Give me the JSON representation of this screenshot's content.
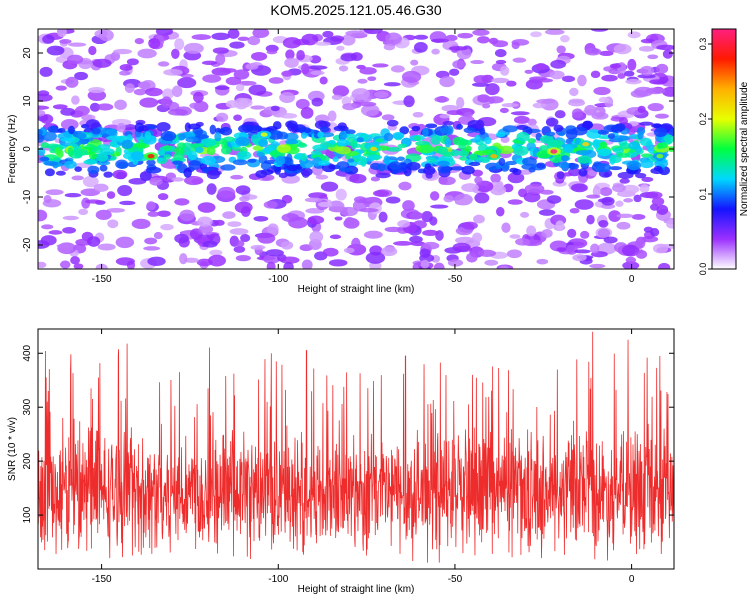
{
  "title": "KOM5.2025.121.05.46.G30",
  "chart_data": [
    {
      "type": "heatmap",
      "xlabel": "Height of straight line (km)",
      "ylabel": "Frequency (Hz)",
      "xlim": [
        -168,
        12
      ],
      "ylim": [
        -25,
        25
      ],
      "xticks": [
        -150,
        -100,
        -50,
        0
      ],
      "yticks": [
        -20,
        -10,
        0,
        10,
        20
      ],
      "colorbar": {
        "label": "Normalized spectral amplitude",
        "range": [
          0.0,
          0.32
        ],
        "ticks": [
          0.0,
          0.1,
          0.2,
          0.3
        ],
        "tick_labels": [
          "0.0",
          "0.1",
          "0.2",
          "0.3"
        ],
        "colors": [
          "#ffffff",
          "#9b30ff",
          "#1414ff",
          "#00d8ff",
          "#00ff40",
          "#e8ff00",
          "#ffb000",
          "#ff1a00",
          "#ff2080"
        ]
      },
      "band_center_hz": 0,
      "band_halfwidth_hz": 6,
      "hotspots": [
        {
          "x": -136,
          "y": -1.5,
          "value": 0.28
        },
        {
          "x": -104,
          "y": 3,
          "value": 0.2
        },
        {
          "x": -73,
          "y": 0,
          "value": 0.22
        },
        {
          "x": -39,
          "y": -1.5,
          "value": 0.24
        },
        {
          "x": -22,
          "y": -0.5,
          "value": 0.32
        },
        {
          "x": -13,
          "y": 1,
          "value": 0.22
        },
        {
          "x": 8,
          "y": -1.5,
          "value": 0.18
        }
      ]
    },
    {
      "type": "line",
      "xlabel": "Height of straight line (km)",
      "ylabel": "SNR (10 * v/v)",
      "xlim": [
        -168,
        12
      ],
      "ylim": [
        0,
        445
      ],
      "xticks": [
        -150,
        -100,
        -50,
        0
      ],
      "yticks": [
        100,
        200,
        300,
        400
      ],
      "color": "#ee2c2c",
      "baseline_mean": 140,
      "peaks": [
        {
          "x": -153,
          "y": 335
        },
        {
          "x": -128,
          "y": 365
        },
        {
          "x": -102,
          "y": 400
        },
        {
          "x": -92,
          "y": 405
        },
        {
          "x": -64,
          "y": 395
        },
        {
          "x": -45,
          "y": 360
        },
        {
          "x": -21,
          "y": 370
        },
        {
          "x": -11,
          "y": 440
        },
        {
          "x": -1,
          "y": 425
        },
        {
          "x": 8,
          "y": 395
        }
      ]
    }
  ]
}
